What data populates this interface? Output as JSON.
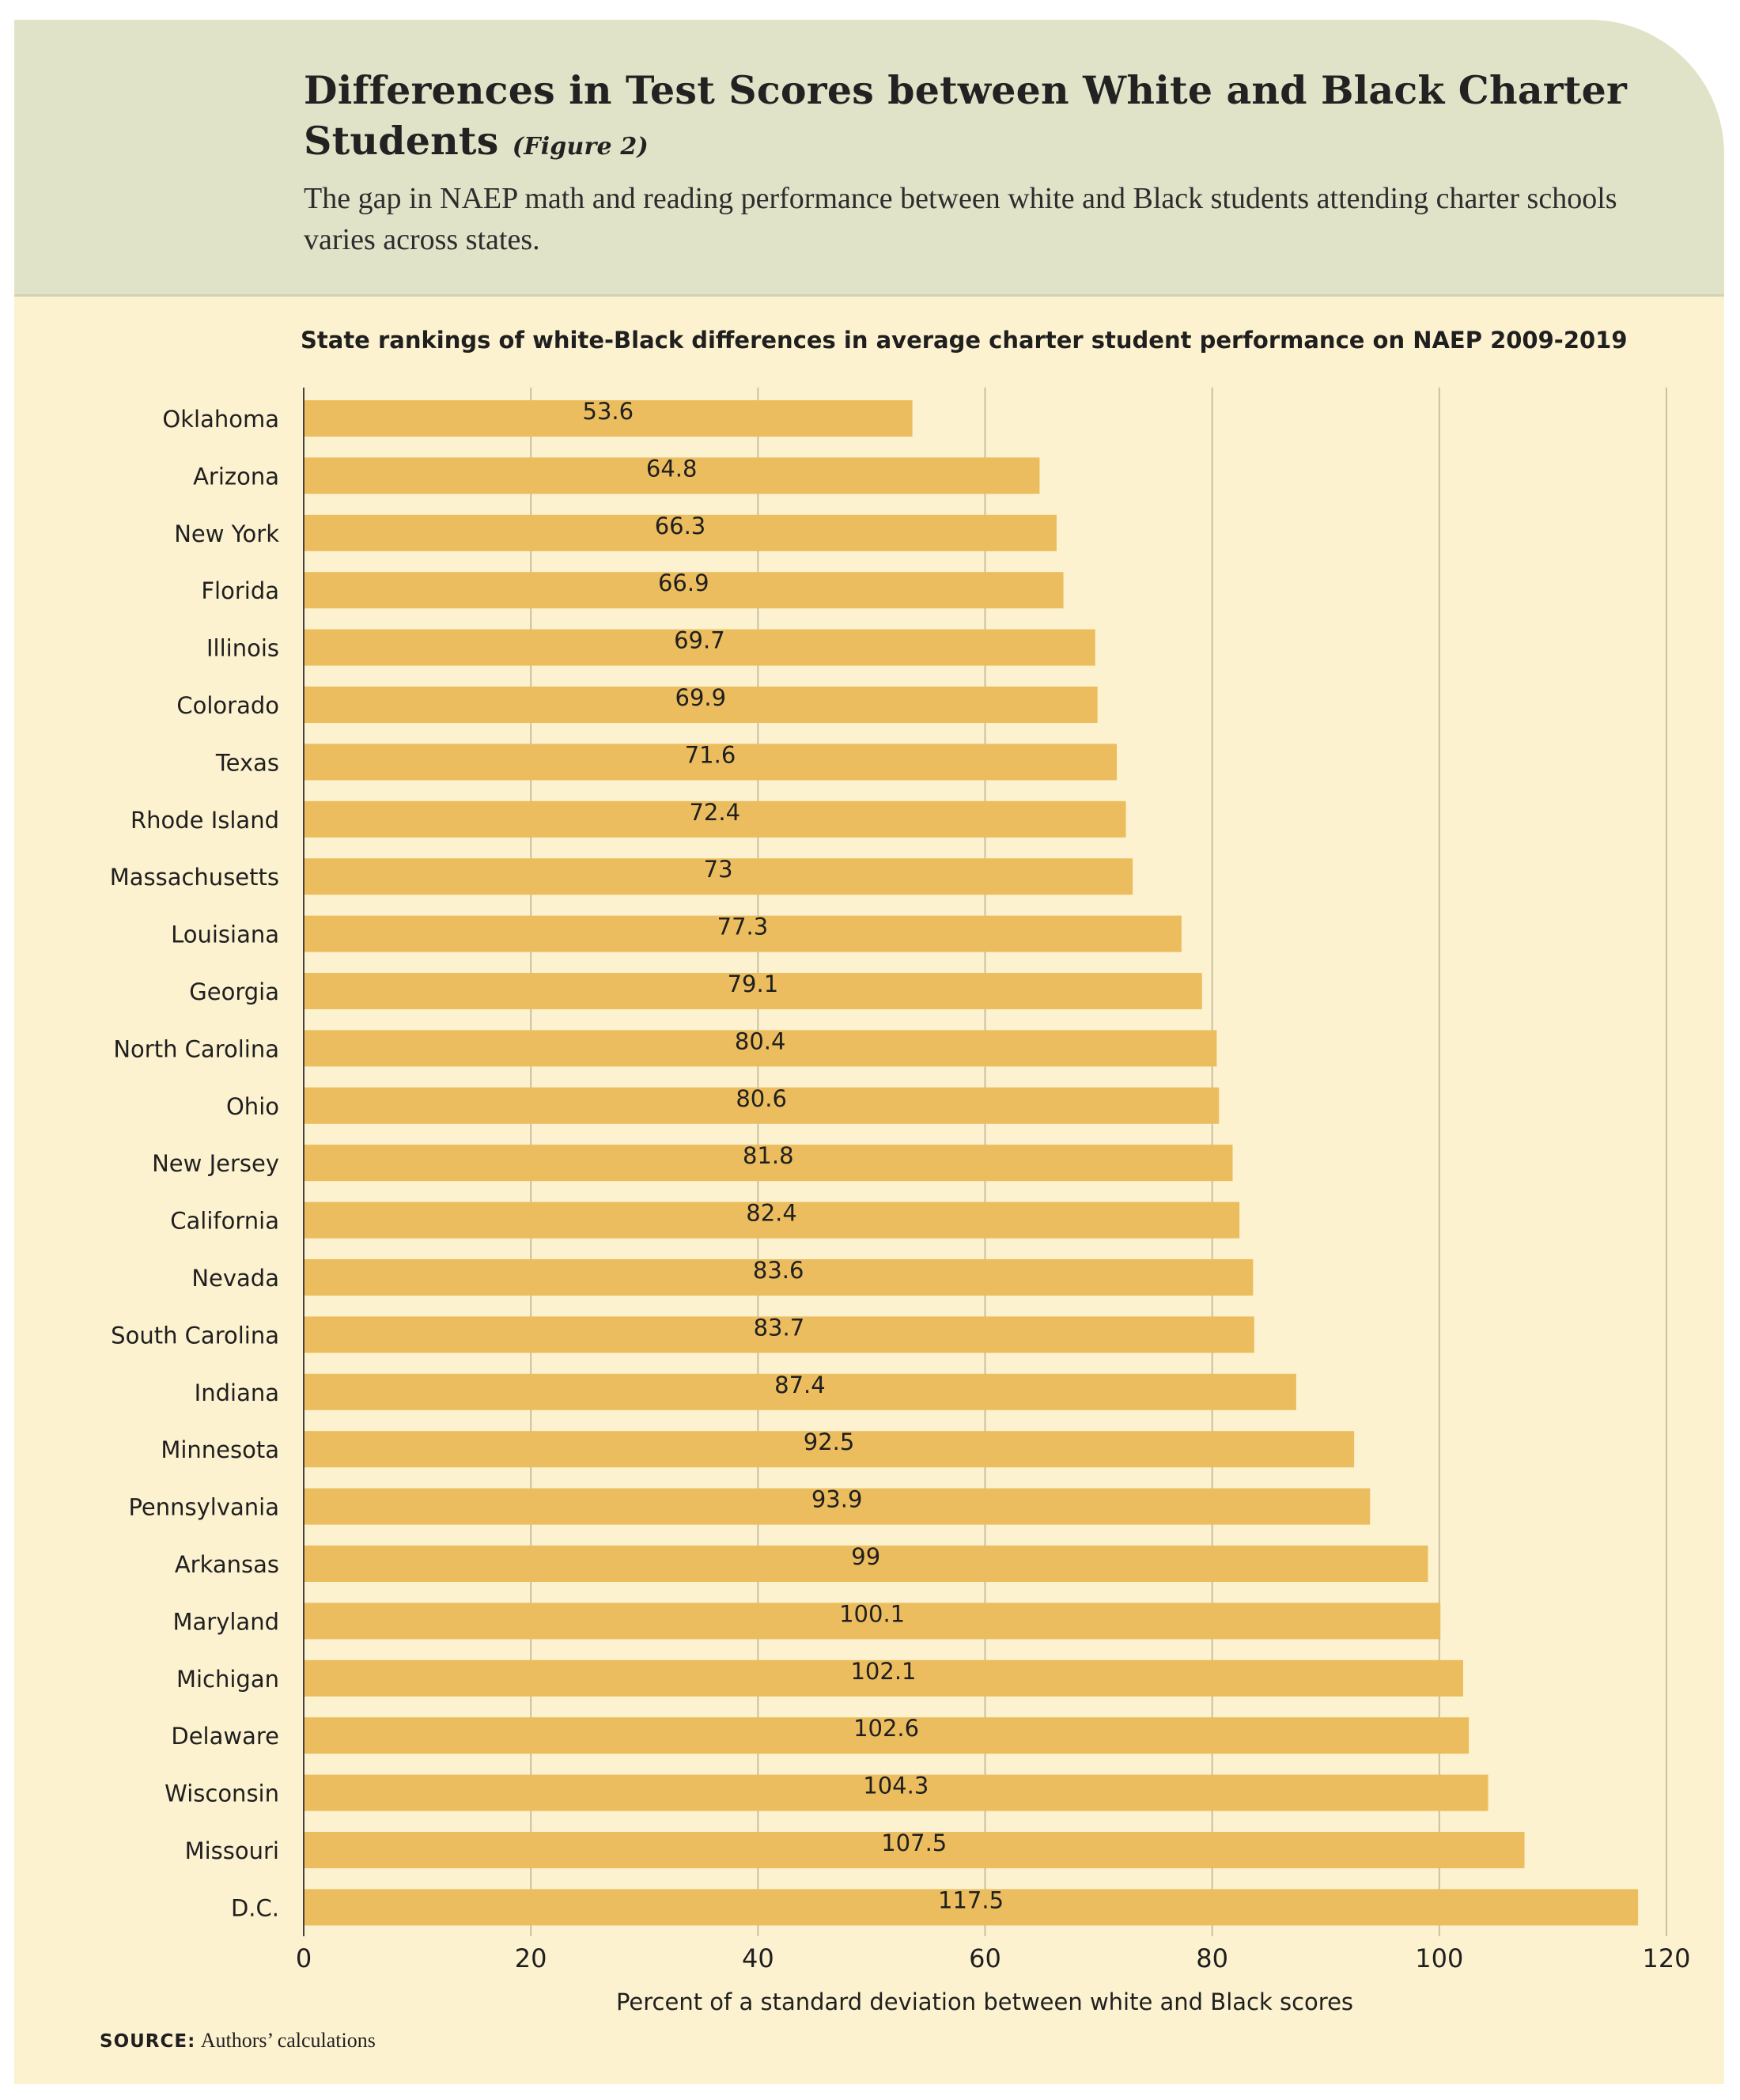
{
  "header": {
    "title": "Differences in Test Scores between White and Black Charter Students",
    "figure_tag": "(Figure 2)",
    "subtitle": "The gap in NAEP math and reading performance between white and Black students attending charter schools varies across states."
  },
  "colors": {
    "header_band": "#e1e3c9",
    "panel": "#fdf2d0",
    "bar": "#ecbd5e",
    "gridline": "#c9bfa2"
  },
  "chart_data": {
    "type": "bar",
    "orientation": "horizontal",
    "title": "State rankings of white-Black differences in average charter student performance on NAEP 2009-2019",
    "xlabel": "Percent of a standard deviation between white and Black scores",
    "ylabel": "",
    "xlim": [
      0,
      120
    ],
    "xticks": [
      0,
      20,
      40,
      60,
      80,
      100,
      120
    ],
    "grid": true,
    "categories": [
      "Oklahoma",
      "Arizona",
      "New York",
      "Florida",
      "Illinois",
      "Colorado",
      "Texas",
      "Rhode Island",
      "Massachusetts",
      "Louisiana",
      "Georgia",
      "North Carolina",
      "Ohio",
      "New Jersey",
      "California",
      "Nevada",
      "South Carolina",
      "Indiana",
      "Minnesota",
      "Pennsylvania",
      "Arkansas",
      "Maryland",
      "Michigan",
      "Delaware",
      "Wisconsin",
      "Missouri",
      "D.C."
    ],
    "values": [
      53.6,
      64.8,
      66.3,
      66.9,
      69.7,
      69.9,
      71.6,
      72.4,
      73,
      77.3,
      79.1,
      80.4,
      80.6,
      81.8,
      82.4,
      83.6,
      83.7,
      87.4,
      92.5,
      93.9,
      99,
      100.1,
      102.1,
      102.6,
      104.3,
      107.5,
      117.5
    ],
    "value_labels": [
      "53.6",
      "64.8",
      "66.3",
      "66.9",
      "69.7",
      "69.9",
      "71.6",
      "72.4",
      "73",
      "77.3",
      "79.1",
      "80.4",
      "80.6",
      "81.8",
      "82.4",
      "83.6",
      "83.7",
      "87.4",
      "92.5",
      "93.9",
      "99",
      "100.1",
      "102.1",
      "102.6",
      "104.3",
      "107.5",
      "117.5"
    ]
  },
  "source": {
    "key": "SOURCE:",
    "text": "Authors’ calculations"
  }
}
